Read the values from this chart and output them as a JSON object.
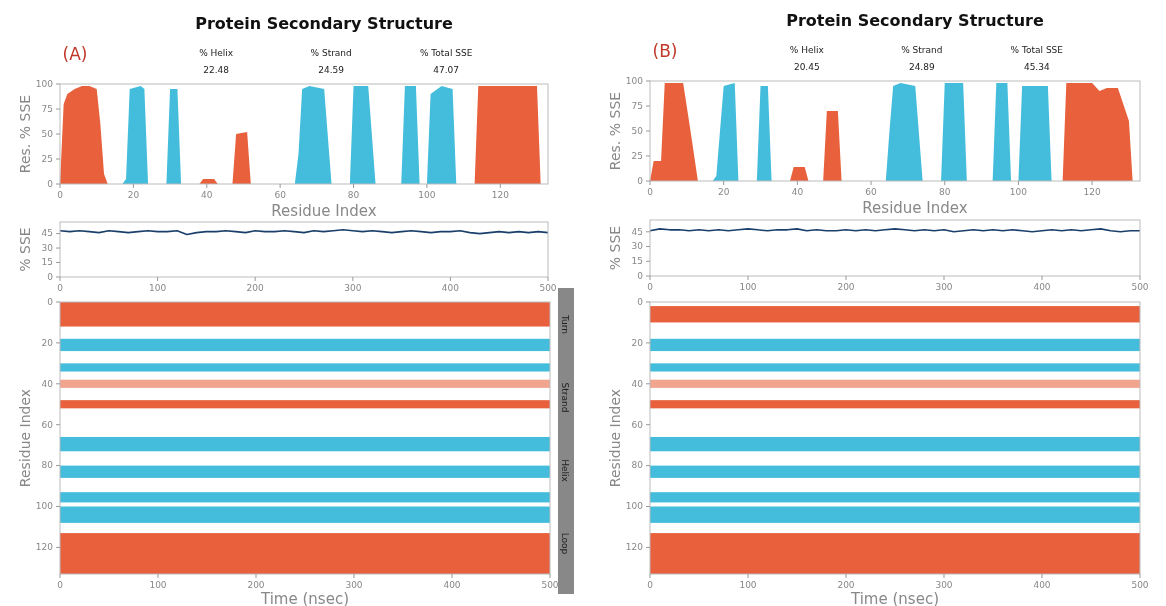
{
  "chart_data": [
    {
      "type": "area",
      "title": "Protein Secondary Structure",
      "xlabel": "Residue Index",
      "ylabel": "Res. % SSE",
      "annotations": [
        "(A)",
        "% Helix",
        "22.48",
        "% Strand",
        "24.59",
        "% Total SSE",
        "47.07"
      ],
      "xlim": [
        0,
        133
      ],
      "xticks": [
        0,
        20,
        40,
        60,
        80,
        100,
        120
      ],
      "ylim": [
        0,
        100
      ],
      "yticks": [
        0,
        25,
        50,
        75,
        100
      ],
      "series": [
        {
          "color": "#e8603c",
          "x": [
            0,
            1,
            2,
            4,
            6,
            8,
            10,
            11,
            12,
            13,
            38,
            39,
            42,
            43,
            47,
            48,
            51,
            52,
            113,
            114,
            130,
            131
          ],
          "values": [
            0,
            80,
            90,
            95,
            98,
            98,
            95,
            60,
            10,
            0,
            0,
            5,
            5,
            0,
            0,
            50,
            52,
            0,
            0,
            98,
            98,
            0
          ]
        },
        {
          "color": "#43bddb",
          "x": [
            17,
            18,
            19,
            22,
            23,
            24,
            29,
            30,
            32,
            33,
            64,
            65,
            66,
            68,
            72,
            74,
            79,
            80,
            84,
            86,
            93,
            94,
            97,
            98,
            100,
            101,
            104,
            107,
            108
          ],
          "values": [
            0,
            5,
            95,
            98,
            95,
            0,
            0,
            95,
            95,
            0,
            0,
            30,
            95,
            98,
            95,
            0,
            0,
            98,
            98,
            0,
            0,
            98,
            98,
            0,
            0,
            90,
            98,
            95,
            0
          ]
        }
      ]
    },
    {
      "type": "line",
      "ylabel": "% SSE",
      "xlim": [
        0,
        500
      ],
      "xticks": [
        0,
        100,
        200,
        300,
        400,
        500
      ],
      "ylim": [
        0,
        57
      ],
      "yticks": [
        0,
        15,
        30,
        45
      ],
      "series": [
        {
          "color": "#1a3f6b",
          "x": [
            0,
            10,
            20,
            30,
            40,
            50,
            60,
            70,
            80,
            90,
            100,
            110,
            120,
            130,
            140,
            150,
            160,
            170,
            180,
            190,
            200,
            210,
            220,
            230,
            240,
            250,
            260,
            270,
            280,
            290,
            300,
            310,
            320,
            330,
            340,
            350,
            360,
            370,
            380,
            390,
            400,
            410,
            420,
            430,
            440,
            450,
            460,
            470,
            480,
            490,
            500
          ],
          "values": [
            48,
            47,
            48,
            47,
            46,
            48,
            47,
            46,
            47,
            48,
            47,
            47,
            48,
            44,
            46,
            47,
            47,
            48,
            47,
            46,
            48,
            47,
            47,
            48,
            47,
            46,
            48,
            47,
            48,
            49,
            48,
            47,
            48,
            47,
            46,
            47,
            48,
            47,
            46,
            47,
            47,
            48,
            46,
            45,
            46,
            47,
            46,
            47,
            46,
            47,
            46
          ]
        }
      ]
    },
    {
      "type": "line",
      "xlabel": "Time (nsec)",
      "ylabel": "Residue Index",
      "xlim": [
        0,
        500
      ],
      "xticks": [
        0,
        100,
        200,
        300,
        400,
        500
      ],
      "ylim": [
        133,
        0
      ],
      "yticks": [
        0,
        20,
        40,
        60,
        80,
        100,
        120
      ],
      "annotations": [
        "Turn",
        "Strand",
        "Helix",
        "Loop"
      ],
      "bands": [
        {
          "axis": "y",
          "from": 0,
          "to": 12,
          "color": "#e8603c"
        },
        {
          "axis": "y",
          "from": 18,
          "to": 24,
          "color": "#43bddb"
        },
        {
          "axis": "y",
          "from": 30,
          "to": 34,
          "color": "#43bddb"
        },
        {
          "axis": "y",
          "from": 38,
          "to": 42,
          "color": "#f2a58e"
        },
        {
          "axis": "y",
          "from": 48,
          "to": 52,
          "color": "#e8603c"
        },
        {
          "axis": "y",
          "from": 66,
          "to": 73,
          "color": "#43bddb"
        },
        {
          "axis": "y",
          "from": 80,
          "to": 86,
          "color": "#43bddb"
        },
        {
          "axis": "y",
          "from": 93,
          "to": 98,
          "color": "#43bddb"
        },
        {
          "axis": "y",
          "from": 100,
          "to": 108,
          "color": "#43bddb"
        },
        {
          "axis": "y",
          "from": 113,
          "to": 133,
          "color": "#e8603c"
        }
      ]
    },
    {
      "type": "area",
      "title": "Protein Secondary Structure",
      "xlabel": "Residue Index",
      "ylabel": "Res. % SSE",
      "annotations": [
        "(B)",
        "% Helix",
        "20.45",
        "% Strand",
        "24.89",
        "% Total SSE",
        "45.34"
      ],
      "xlim": [
        0,
        133
      ],
      "xticks": [
        0,
        20,
        40,
        60,
        80,
        100,
        120
      ],
      "ylim": [
        0,
        100
      ],
      "yticks": [
        0,
        25,
        50,
        75,
        100
      ],
      "series": [
        {
          "color": "#e8603c",
          "x": [
            0,
            1,
            3,
            4,
            9,
            11,
            13,
            38,
            39,
            42,
            43,
            47,
            48,
            51,
            52,
            112,
            113,
            120,
            122,
            124,
            127,
            130,
            131
          ],
          "values": [
            0,
            20,
            20,
            98,
            98,
            50,
            0,
            0,
            14,
            14,
            0,
            0,
            70,
            70,
            0,
            0,
            98,
            98,
            90,
            93,
            93,
            60,
            0
          ]
        },
        {
          "color": "#43bddb",
          "x": [
            17,
            18,
            20,
            23,
            24,
            29,
            30,
            32,
            33,
            64,
            65,
            66,
            68,
            72,
            74,
            79,
            80,
            85,
            86,
            93,
            94,
            97,
            98,
            100,
            101,
            108,
            109
          ],
          "values": [
            0,
            5,
            95,
            98,
            0,
            0,
            95,
            95,
            0,
            0,
            50,
            95,
            98,
            95,
            0,
            0,
            98,
            98,
            0,
            0,
            98,
            98,
            0,
            0,
            95,
            95,
            0
          ]
        }
      ]
    },
    {
      "type": "line",
      "ylabel": "% SSE",
      "xlim": [
        0,
        500
      ],
      "xticks": [
        0,
        100,
        200,
        300,
        400,
        500
      ],
      "ylim": [
        0,
        57
      ],
      "yticks": [
        0,
        15,
        30,
        45
      ],
      "series": [
        {
          "color": "#1a3f6b",
          "x": [
            0,
            10,
            20,
            30,
            40,
            50,
            60,
            70,
            80,
            90,
            100,
            110,
            120,
            130,
            140,
            150,
            160,
            170,
            180,
            190,
            200,
            210,
            220,
            230,
            240,
            250,
            260,
            270,
            280,
            290,
            300,
            310,
            320,
            330,
            340,
            350,
            360,
            370,
            380,
            390,
            400,
            410,
            420,
            430,
            440,
            450,
            460,
            470,
            480,
            490,
            500
          ],
          "values": [
            46,
            48,
            47,
            47,
            46,
            47,
            46,
            47,
            46,
            47,
            48,
            47,
            46,
            47,
            47,
            48,
            46,
            47,
            46,
            46,
            47,
            46,
            47,
            46,
            47,
            48,
            47,
            46,
            47,
            46,
            47,
            45,
            46,
            47,
            46,
            47,
            46,
            47,
            46,
            45,
            46,
            47,
            46,
            47,
            46,
            47,
            48,
            46,
            45,
            46,
            46
          ]
        }
      ]
    },
    {
      "type": "line",
      "xlabel": "Time (nsec)",
      "ylabel": "Residue Index",
      "xlim": [
        0,
        500
      ],
      "xticks": [
        0,
        100,
        200,
        300,
        400,
        500
      ],
      "ylim": [
        133,
        0
      ],
      "yticks": [
        0,
        20,
        40,
        60,
        80,
        100,
        120
      ],
      "bands": [
        {
          "axis": "y",
          "from": 2,
          "to": 10,
          "color": "#e8603c"
        },
        {
          "axis": "y",
          "from": 18,
          "to": 24,
          "color": "#43bddb"
        },
        {
          "axis": "y",
          "from": 30,
          "to": 34,
          "color": "#43bddb"
        },
        {
          "axis": "y",
          "from": 38,
          "to": 42,
          "color": "#f2a58e"
        },
        {
          "axis": "y",
          "from": 48,
          "to": 52,
          "color": "#e8603c"
        },
        {
          "axis": "y",
          "from": 66,
          "to": 73,
          "color": "#43bddb"
        },
        {
          "axis": "y",
          "from": 80,
          "to": 86,
          "color": "#43bddb"
        },
        {
          "axis": "y",
          "from": 93,
          "to": 98,
          "color": "#43bddb"
        },
        {
          "axis": "y",
          "from": 100,
          "to": 108,
          "color": "#43bddb"
        },
        {
          "axis": "y",
          "from": 113,
          "to": 133,
          "color": "#e8603c"
        }
      ]
    }
  ]
}
